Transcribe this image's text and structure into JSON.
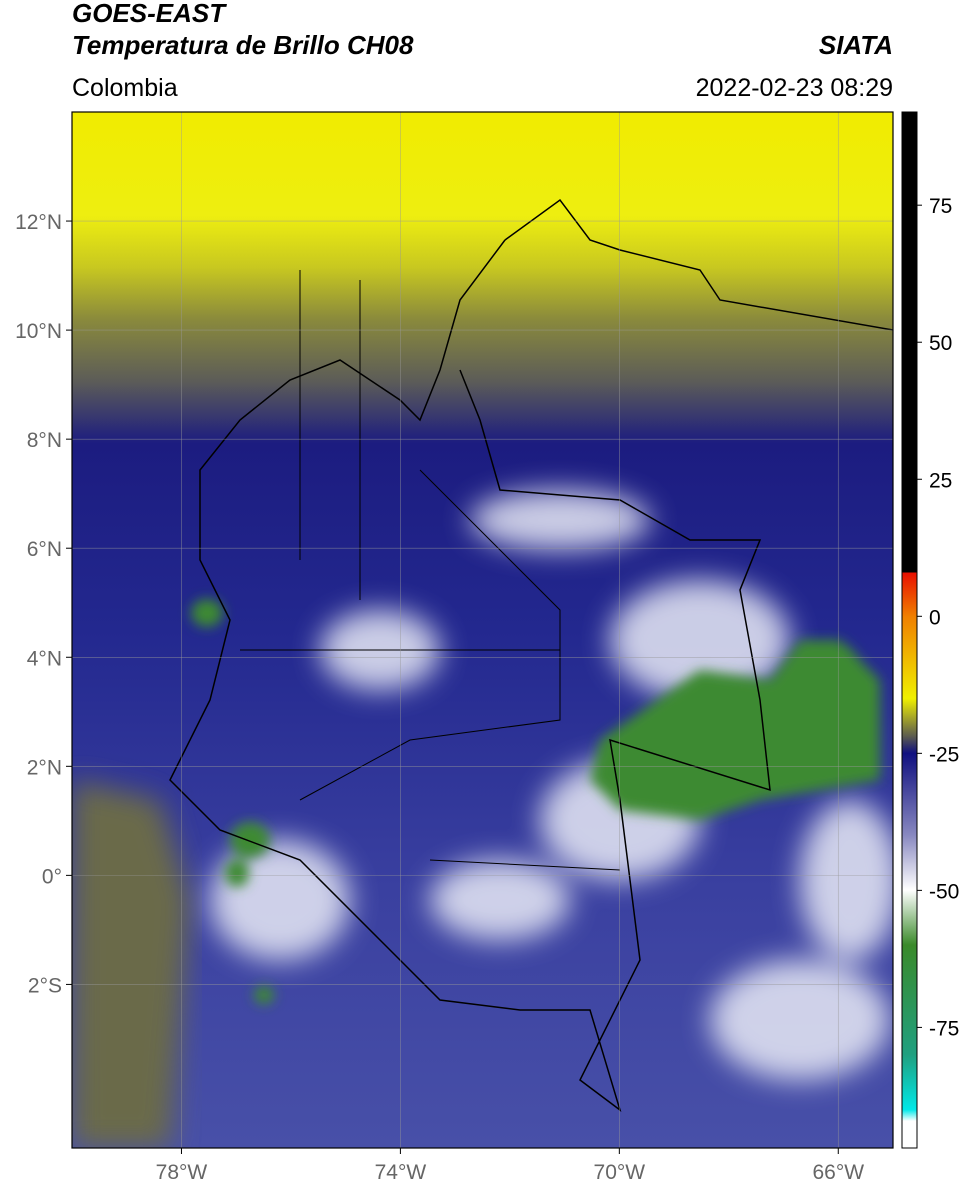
{
  "header": {
    "title": "GOES-EAST",
    "subtitle": "Temperatura de Brillo CH08",
    "region": "Colombia",
    "source": "SIATA",
    "timestamp": "2022-02-23 08:29"
  },
  "map": {
    "xlim": [
      -80,
      -65
    ],
    "ylim": [
      -5,
      14
    ],
    "xticks": [
      {
        "value": -78,
        "label": "78°W"
      },
      {
        "value": -74,
        "label": "74°W"
      },
      {
        "value": -70,
        "label": "70°W"
      },
      {
        "value": -66,
        "label": "66°W"
      }
    ],
    "yticks": [
      {
        "value": 12,
        "label": "12°N"
      },
      {
        "value": 10,
        "label": "10°N"
      },
      {
        "value": 8,
        "label": "8°N"
      },
      {
        "value": 6,
        "label": "6°N"
      },
      {
        "value": 4,
        "label": "4°N"
      },
      {
        "value": 2,
        "label": "2°N"
      },
      {
        "value": 0,
        "label": "0°"
      },
      {
        "value": -2,
        "label": "2°S"
      }
    ],
    "grid": true
  },
  "colorbar": {
    "lim": [
      -97,
      92
    ],
    "ticks": [
      75,
      50,
      25,
      0,
      -25,
      -50,
      -75
    ]
  }
}
